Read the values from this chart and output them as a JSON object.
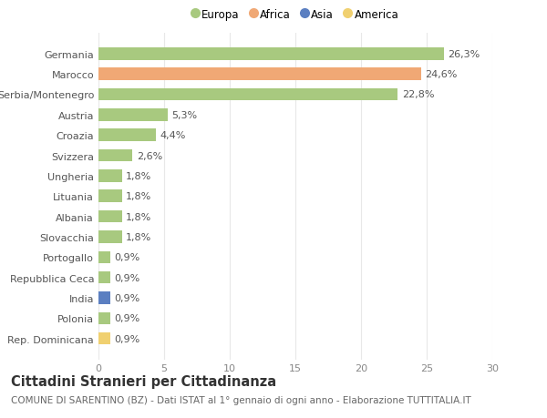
{
  "countries": [
    "Germania",
    "Marocco",
    "Serbia/Montenegro",
    "Austria",
    "Croazia",
    "Svizzera",
    "Ungheria",
    "Lituania",
    "Albania",
    "Slovacchia",
    "Portogallo",
    "Repubblica Ceca",
    "India",
    "Polonia",
    "Rep. Dominicana"
  ],
  "values": [
    26.3,
    24.6,
    22.8,
    5.3,
    4.4,
    2.6,
    1.8,
    1.8,
    1.8,
    1.8,
    0.9,
    0.9,
    0.9,
    0.9,
    0.9
  ],
  "labels": [
    "26,3%",
    "24,6%",
    "22,8%",
    "5,3%",
    "4,4%",
    "2,6%",
    "1,8%",
    "1,8%",
    "1,8%",
    "1,8%",
    "0,9%",
    "0,9%",
    "0,9%",
    "0,9%",
    "0,9%"
  ],
  "continents": [
    "Europa",
    "Africa",
    "Europa",
    "Europa",
    "Europa",
    "Europa",
    "Europa",
    "Europa",
    "Europa",
    "Europa",
    "Europa",
    "Europa",
    "Asia",
    "Europa",
    "America"
  ],
  "colors": {
    "Europa": "#a8c97f",
    "Africa": "#f0a875",
    "Asia": "#5b7fc1",
    "America": "#f0d070"
  },
  "legend_order": [
    "Europa",
    "Africa",
    "Asia",
    "America"
  ],
  "xlim": [
    0,
    30
  ],
  "xticks": [
    0,
    5,
    10,
    15,
    20,
    25,
    30
  ],
  "title": "Cittadini Stranieri per Cittadinanza",
  "subtitle": "COMUNE DI SARENTINO (BZ) - Dati ISTAT al 1° gennaio di ogni anno - Elaborazione TUTTITALIA.IT",
  "background_color": "#ffffff",
  "grid_color": "#e8e8e8",
  "bar_height": 0.6,
  "label_fontsize": 8,
  "tick_fontsize": 8,
  "title_fontsize": 10.5,
  "subtitle_fontsize": 7.5
}
